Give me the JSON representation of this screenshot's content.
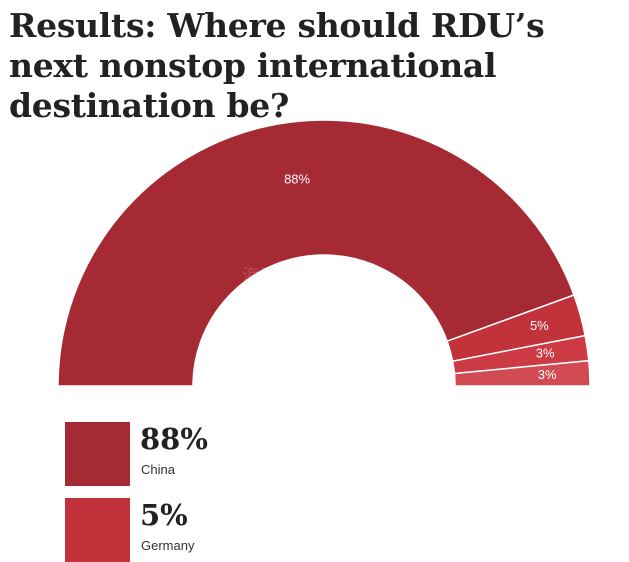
{
  "title": "Results: Where should RDU’s next nonstop international destination be?",
  "watermark": {
    "text": "海那边",
    "sub": "Hinabian"
  },
  "chart_data": {
    "type": "pie",
    "variant": "semi-donut",
    "title": "Results: Where should RDU’s next nonstop international destination be?",
    "slices": [
      {
        "value": 88,
        "label": "88%",
        "color": "#a62a33"
      },
      {
        "value": 5,
        "label": "5%",
        "color": "#c1323b"
      },
      {
        "value": 3,
        "label": "3%",
        "color": "#cc3b44"
      },
      {
        "value": 3,
        "label": "3%",
        "color": "#d24a52"
      }
    ],
    "legend": [
      {
        "value_text": "88%",
        "label": "China",
        "color": "#a62a33"
      },
      {
        "value_text": "5%",
        "label": "Germany",
        "color": "#c1323b"
      }
    ]
  }
}
